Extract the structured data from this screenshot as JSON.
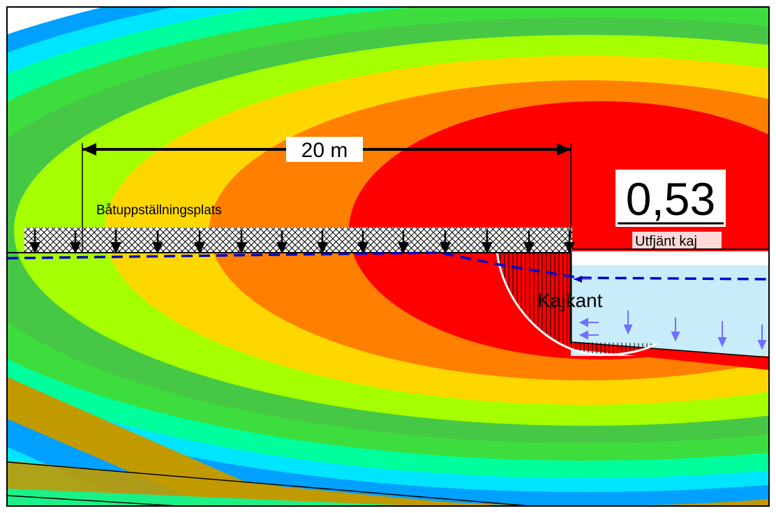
{
  "labels": {
    "dimension": "20 m",
    "load_area": "Båtuppställningsplats",
    "safety_factor": "0,53",
    "quay_note": "Utfjänt kaj",
    "quay_edge": "Kajkant"
  },
  "colors": {
    "factor_min": "#ff0000",
    "contour_scale": [
      "#ff0000",
      "#ff7f00",
      "#ffd700",
      "#a6ff00",
      "#3ddd3d",
      "#00ff9c",
      "#00e5ff",
      "#00a0ff",
      "#0000ff",
      "#c19a00"
    ],
    "water": "#c8ecfa",
    "water_level_line": "#0000cc",
    "load_arrows": "#000000",
    "water_pressure_arrows": "#7070ff",
    "slip_surface": "#ffffff"
  }
}
